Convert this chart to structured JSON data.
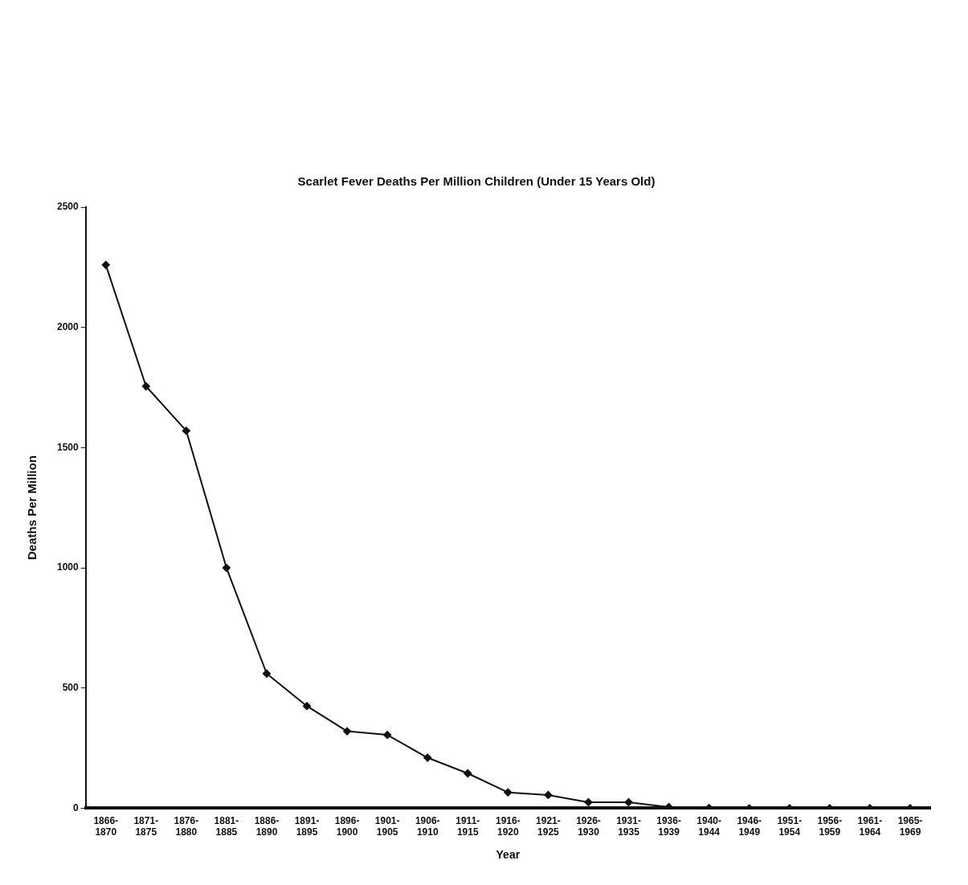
{
  "chart_data": {
    "type": "line",
    "title": "Scarlet Fever Deaths Per Million Children (Under 15 Years Old)",
    "xlabel": "Year",
    "ylabel": "Deaths Per Million",
    "categories": [
      "1866-1870",
      "1871-1875",
      "1876-1880",
      "1881-1885",
      "1886-1890",
      "1891-1895",
      "1896-1900",
      "1901-1905",
      "1906-1910",
      "1911-1915",
      "1916-1920",
      "1921-1925",
      "1926-1930",
      "1931-1935",
      "1936-1939",
      "1940-1944",
      "1946-1949",
      "1951-1954",
      "1956-1959",
      "1961-1964",
      "1965-1969"
    ],
    "series": [
      {
        "color": "#111111",
        "values": [
          2260,
          1755,
          1570,
          1000,
          560,
          425,
          320,
          305,
          210,
          145,
          66,
          55,
          25,
          25,
          5,
          1,
          0,
          0,
          0,
          0,
          0
        ]
      }
    ],
    "ylim": [
      0,
      2500
    ],
    "yticks": [
      0,
      500,
      1000,
      1500,
      2000,
      2500
    ],
    "grid": false,
    "legend": false,
    "marker": "diamond",
    "line_style": "solid"
  }
}
